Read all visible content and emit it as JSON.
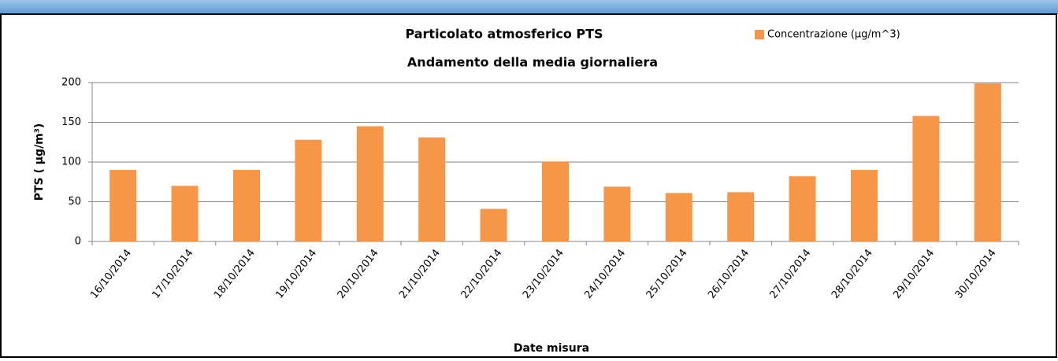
{
  "chart_data": {
    "type": "bar",
    "title": "Particolato atmosferico PTS",
    "subtitle": "Andamento della media giornaliera",
    "x_label": "Date misura",
    "y_label": "PTS ( µg/m³)",
    "categories": [
      "16/10/2014",
      "17/10/2014",
      "18/10/2014",
      "19/10/2014",
      "20/10/2014",
      "21/10/2014",
      "22/10/2014",
      "23/10/2014",
      "24/10/2014",
      "25/10/2014",
      "26/10/2014",
      "27/10/2014",
      "28/10/2014",
      "29/10/2014",
      "30/10/2014"
    ],
    "series": [
      {
        "name": "Concentrazione (µg/m^3)",
        "color": "#f79646",
        "values": [
          90,
          70,
          90,
          128,
          145,
          131,
          41,
          100,
          69,
          61,
          62,
          82,
          90,
          158,
          199
        ]
      }
    ],
    "ylim": [
      0,
      200
    ],
    "yticks": [
      0,
      50,
      100,
      150,
      200
    ],
    "grid": true,
    "legend": "top-right"
  }
}
